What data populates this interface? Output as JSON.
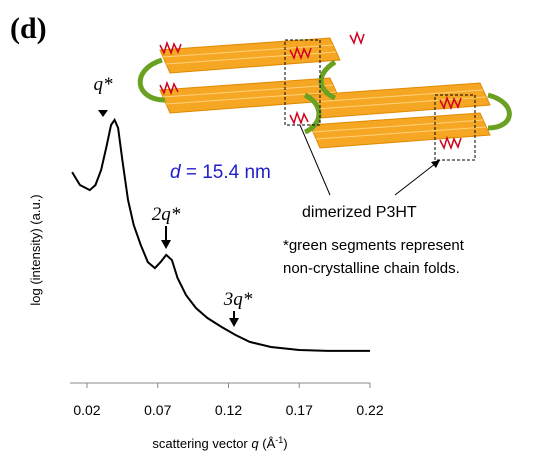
{
  "chart_data": {
    "type": "line",
    "panel_label": "(d)",
    "x_label": {
      "prefix": "scattering vector ",
      "variable": "q",
      "unit": " (Å",
      "exponent": "-1",
      "suffix": ")"
    },
    "y_label": "log (intensity) (a.u.)",
    "annotations": [
      "q*",
      "2q*",
      "3q*"
    ],
    "d_label": {
      "variable": "d",
      "text": " = 15.4 nm"
    },
    "illustration_labels": [
      "dimerized P3HT",
      "*green segments represent",
      "non-crystalline chain folds."
    ],
    "xlim": [
      0.008,
      0.22
    ],
    "xticks": [
      0.02,
      0.07,
      0.12,
      0.17,
      0.22
    ],
    "ylim": [
      0,
      10
    ],
    "color": "#000000",
    "x": [
      0.0095,
      0.015,
      0.022,
      0.026,
      0.03,
      0.034,
      0.037,
      0.0395,
      0.042,
      0.045,
      0.049,
      0.053,
      0.058,
      0.063,
      0.068,
      0.072,
      0.076,
      0.08,
      0.084,
      0.09,
      0.097,
      0.105,
      0.115,
      0.125,
      0.135,
      0.15,
      0.17,
      0.19,
      0.22
    ],
    "values": [
      7.03,
      6.6,
      6.43,
      6.6,
      7.1,
      7.93,
      8.6,
      8.77,
      8.5,
      7.43,
      6.1,
      5.27,
      4.6,
      4.03,
      3.83,
      4.03,
      4.27,
      4.1,
      3.5,
      2.93,
      2.5,
      2.17,
      1.87,
      1.6,
      1.37,
      1.2,
      1.1,
      1.07,
      1.07
    ]
  }
}
